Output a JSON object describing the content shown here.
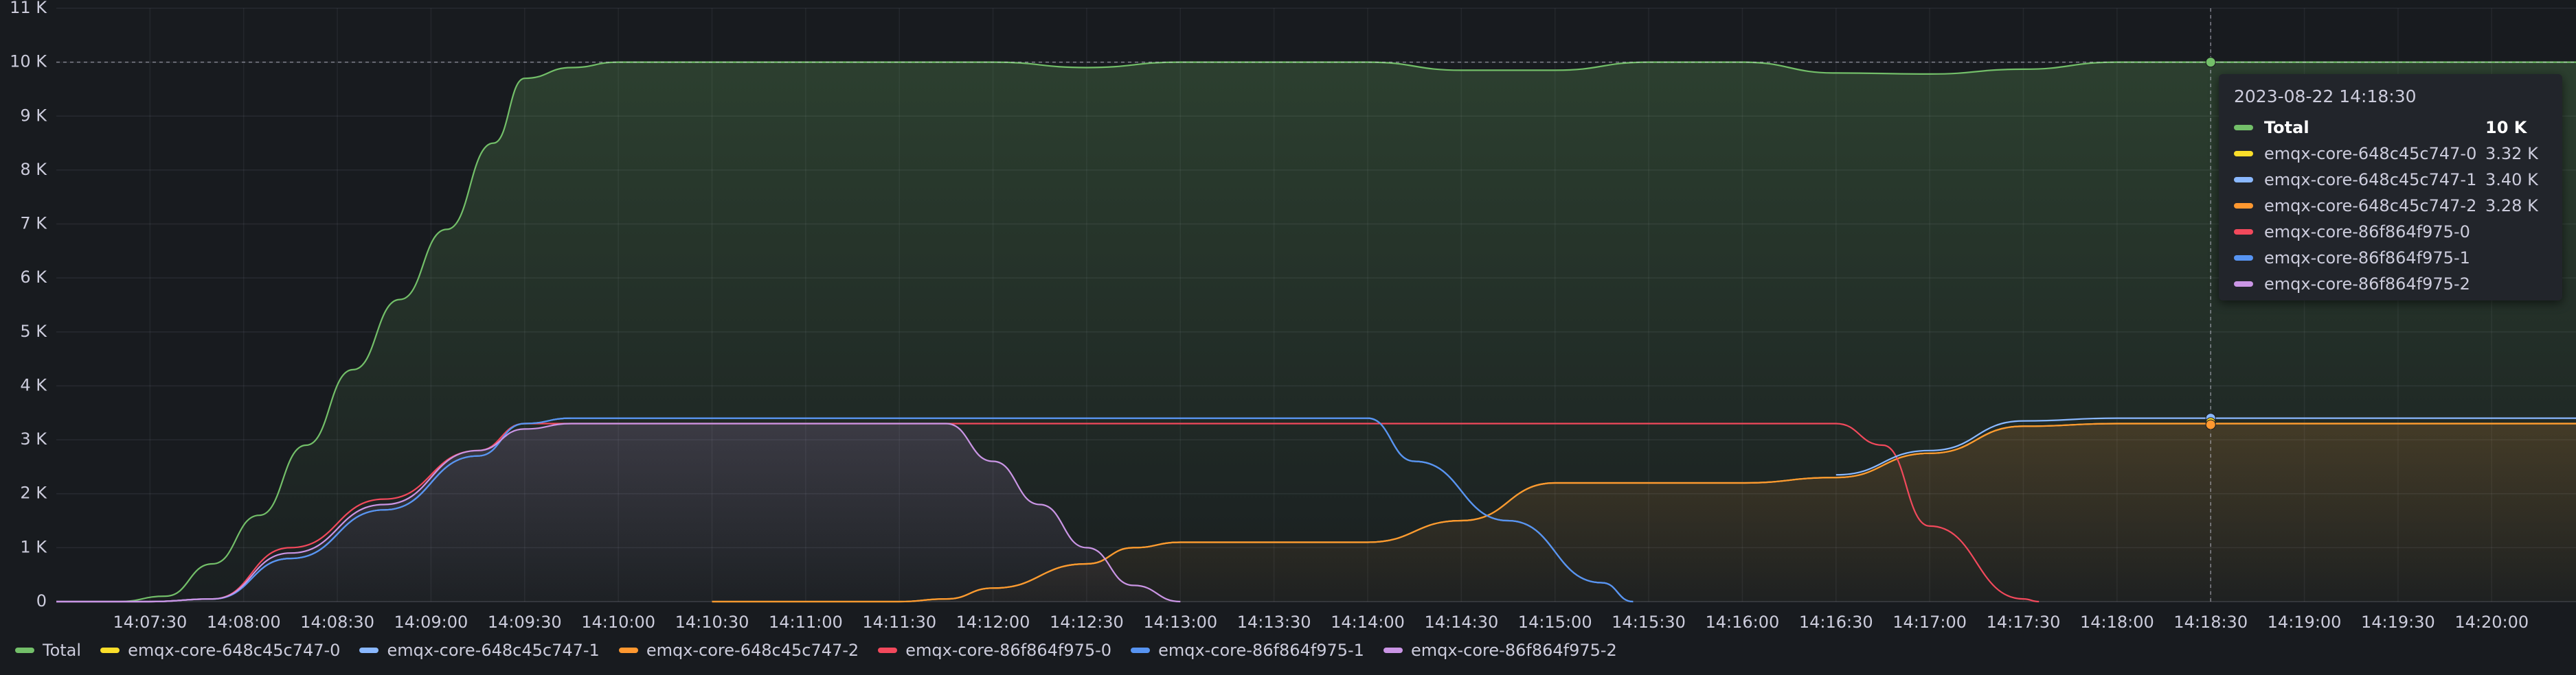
{
  "chart_data": {
    "type": "area",
    "y_ticks": [
      "0",
      "1 K",
      "2 K",
      "3 K",
      "4 K",
      "5 K",
      "6 K",
      "7 K",
      "8 K",
      "9 K",
      "10 K",
      "11 K"
    ],
    "ylim": [
      0,
      11000
    ],
    "x_ticks": [
      "14:07:30",
      "14:08:00",
      "14:08:30",
      "14:09:00",
      "14:09:30",
      "14:10:00",
      "14:10:30",
      "14:11:00",
      "14:11:30",
      "14:12:00",
      "14:12:30",
      "14:13:00",
      "14:13:30",
      "14:14:00",
      "14:14:30",
      "14:15:00",
      "14:15:30",
      "14:16:00",
      "14:16:30",
      "14:17:00",
      "14:17:30",
      "14:18:00",
      "14:18:30",
      "14:19:00",
      "14:19:30",
      "14:20:00"
    ],
    "xlim": [
      "14:07:00",
      "14:20:27"
    ],
    "threshold": 10000,
    "grid": true,
    "legend": "bottom",
    "series": [
      {
        "name": "Total",
        "color": "#73bf69",
        "fill": true,
        "x": [
          "14:07:00",
          "14:07:20",
          "14:07:35",
          "14:07:50",
          "14:08:05",
          "14:08:20",
          "14:08:35",
          "14:08:50",
          "14:09:05",
          "14:09:20",
          "14:09:30",
          "14:09:45",
          "14:10:00",
          "14:10:30",
          "14:11:00",
          "14:11:30",
          "14:12:00",
          "14:12:30",
          "14:13:00",
          "14:13:30",
          "14:14:00",
          "14:14:30",
          "14:15:00",
          "14:15:30",
          "14:16:00",
          "14:16:30",
          "14:17:00",
          "14:17:30",
          "14:18:00",
          "14:18:30",
          "14:19:00",
          "14:19:30",
          "14:20:00",
          "14:20:27"
        ],
        "y": [
          0,
          0,
          100,
          700,
          1600,
          2900,
          4300,
          5600,
          6900,
          8500,
          9700,
          9900,
          10000,
          10000,
          10000,
          10000,
          10000,
          9900,
          10000,
          10000,
          10000,
          9850,
          9850,
          10000,
          10000,
          9800,
          9780,
          9870,
          10000,
          10000,
          10000,
          10000,
          10000,
          10000
        ]
      },
      {
        "name": "emqx-core-648c45c747-0",
        "color": "#fade2a",
        "fill": false,
        "x": [
          "14:10:30",
          "14:11:30",
          "14:11:45",
          "14:12:00",
          "14:12:30",
          "14:12:45",
          "14:13:00",
          "14:14:00",
          "14:14:30",
          "14:15:00",
          "14:16:00",
          "14:16:30",
          "14:17:00",
          "14:17:30",
          "14:18:00",
          "14:20:27"
        ],
        "y": [
          0,
          0,
          50,
          250,
          700,
          1000,
          1100,
          1100,
          1500,
          2200,
          2200,
          2300,
          2750,
          3250,
          3300,
          3300
        ]
      },
      {
        "name": "emqx-core-648c45c747-1",
        "color": "#8ab8ff",
        "fill": false,
        "x": [
          "14:07:00",
          "14:07:30",
          "14:07:50",
          "14:08:15",
          "14:08:45",
          "14:09:15",
          "14:09:30",
          "14:09:45",
          "14:14:00",
          "14:14:15",
          "14:14:45",
          "14:15:15",
          "14:15:25"
        ],
        "y": [
          0,
          0,
          50,
          800,
          1700,
          2700,
          3300,
          3400,
          3400,
          2600,
          1500,
          350,
          0
        ]
      },
      {
        "name": "emqx-core-648c45c747-2",
        "color": "#ff9830",
        "fill": true,
        "x": [
          "14:10:30",
          "14:11:30",
          "14:11:45",
          "14:12:00",
          "14:12:30",
          "14:12:45",
          "14:13:00",
          "14:14:00",
          "14:14:30",
          "14:15:00",
          "14:16:00",
          "14:16:30",
          "14:17:00",
          "14:17:30",
          "14:18:00",
          "14:20:27"
        ],
        "y": [
          0,
          0,
          50,
          250,
          700,
          1000,
          1100,
          1100,
          1500,
          2200,
          2200,
          2300,
          2750,
          3250,
          3300,
          3300
        ]
      },
      {
        "name": "emqx-core-86f864f975-0",
        "color": "#f2495c",
        "fill": false,
        "x": [
          "14:07:00",
          "14:07:30",
          "14:07:50",
          "14:08:15",
          "14:08:45",
          "14:09:15",
          "14:09:30",
          "14:09:45",
          "14:16:30",
          "14:16:45",
          "14:17:00",
          "14:17:30",
          "14:17:35"
        ],
        "y": [
          0,
          0,
          50,
          1000,
          1900,
          2800,
          3300,
          3300,
          3300,
          2900,
          1400,
          50,
          0
        ]
      },
      {
        "name": "emqx-core-86f864f975-1",
        "color": "#5794f2",
        "fill": false,
        "x": [
          "14:07:00",
          "14:07:30",
          "14:07:50",
          "14:08:15",
          "14:08:45",
          "14:09:15",
          "14:09:30",
          "14:09:45",
          "14:14:00",
          "14:14:15",
          "14:14:45",
          "14:15:15",
          "14:15:25"
        ],
        "y": [
          0,
          0,
          50,
          800,
          1700,
          2700,
          3300,
          3400,
          3400,
          2600,
          1500,
          350,
          0
        ]
      },
      {
        "name": "emqx-core-86f864f975-2",
        "color": "#ca95e5",
        "fill": true,
        "x": [
          "14:07:00",
          "14:07:30",
          "14:07:50",
          "14:08:15",
          "14:08:45",
          "14:09:15",
          "14:09:30",
          "14:09:45",
          "14:11:45",
          "14:12:00",
          "14:12:15",
          "14:12:30",
          "14:12:45",
          "14:13:00"
        ],
        "y": [
          0,
          0,
          50,
          900,
          1800,
          2800,
          3200,
          3300,
          3300,
          2600,
          1800,
          1000,
          300,
          0
        ]
      },
      {
        "name": "emqx-core-648c45c747-1 (tail)",
        "color": "#8ab8ff",
        "fill": false,
        "legend": false,
        "x": [
          "14:16:30",
          "14:17:00",
          "14:17:30",
          "14:18:00",
          "14:20:27"
        ],
        "y": [
          2350,
          2800,
          3350,
          3400,
          3400
        ]
      }
    ],
    "cursor": {
      "x": "14:18:30"
    }
  },
  "tooltip": {
    "time": "2023-08-22 14:18:30",
    "rows": [
      {
        "name": "Total",
        "value": "10 K",
        "color": "#73bf69",
        "bold": true
      },
      {
        "name": "emqx-core-648c45c747-0",
        "value": "3.32 K",
        "color": "#fade2a"
      },
      {
        "name": "emqx-core-648c45c747-1",
        "value": "3.40 K",
        "color": "#8ab8ff"
      },
      {
        "name": "emqx-core-648c45c747-2",
        "value": "3.28 K",
        "color": "#ff9830"
      },
      {
        "name": "emqx-core-86f864f975-0",
        "value": "",
        "color": "#f2495c"
      },
      {
        "name": "emqx-core-86f864f975-1",
        "value": "",
        "color": "#5794f2"
      },
      {
        "name": "emqx-core-86f864f975-2",
        "value": "",
        "color": "#ca95e5"
      }
    ]
  },
  "legend": [
    {
      "name": "Total",
      "color": "#73bf69"
    },
    {
      "name": "emqx-core-648c45c747-0",
      "color": "#fade2a"
    },
    {
      "name": "emqx-core-648c45c747-1",
      "color": "#8ab8ff"
    },
    {
      "name": "emqx-core-648c45c747-2",
      "color": "#ff9830"
    },
    {
      "name": "emqx-core-86f864f975-0",
      "color": "#f2495c"
    },
    {
      "name": "emqx-core-86f864f975-1",
      "color": "#5794f2"
    },
    {
      "name": "emqx-core-86f864f975-2",
      "color": "#ca95e5"
    }
  ]
}
